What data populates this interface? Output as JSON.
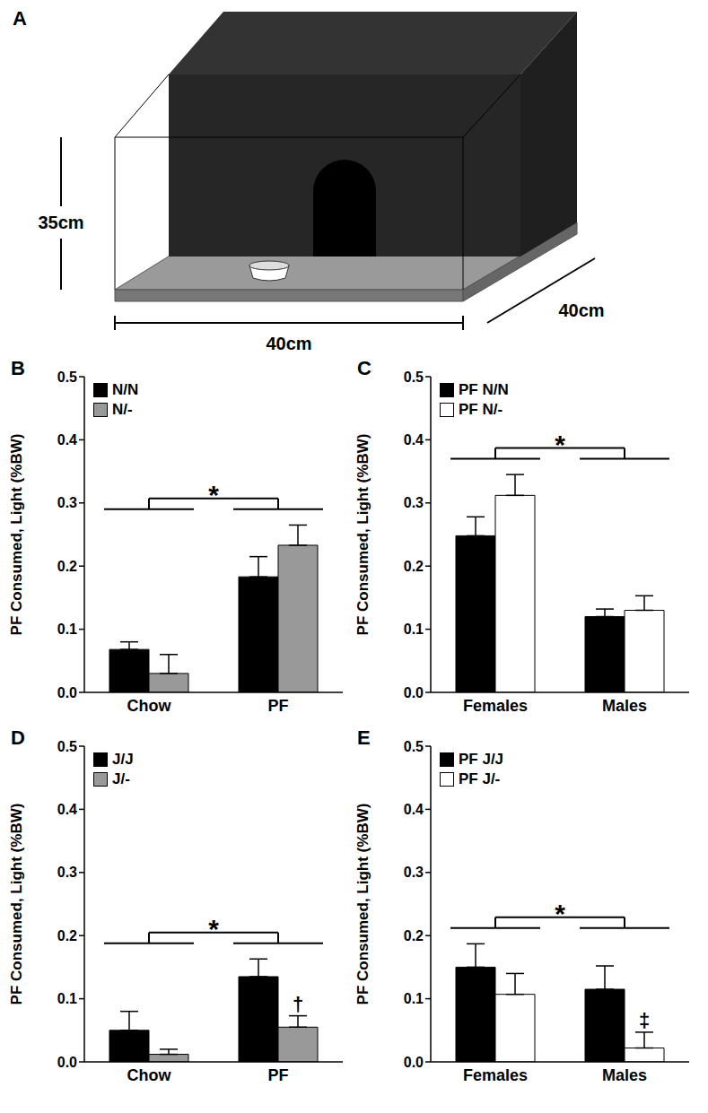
{
  "diagram": {
    "panel_label": "A",
    "dimensions": {
      "height": "35cm",
      "width": "40cm",
      "depth": "40cm"
    }
  },
  "chart_data": [
    {
      "panel_label": "B",
      "type": "bar",
      "y_label": "PF Consumed, Light (%BW)",
      "categories": [
        "Chow",
        "PF"
      ],
      "series": [
        {
          "name": "N/N",
          "color": "#000000",
          "values": [
            0.068,
            0.183
          ],
          "errors": [
            0.012,
            0.032
          ]
        },
        {
          "name": "N/-",
          "color": "#999999",
          "values": [
            0.03,
            0.233
          ],
          "errors": [
            0.03,
            0.032
          ]
        }
      ],
      "ylim": [
        0,
        0.5
      ],
      "yticks": [
        {
          "value": 0,
          "label": "0.0"
        },
        0.1,
        0.2,
        0.3,
        0.4,
        0.5
      ],
      "legend": "upper left",
      "annotations": [
        {
          "text": "*",
          "between": [
            "Chow",
            "PF"
          ]
        }
      ]
    },
    {
      "panel_label": "C",
      "type": "bar",
      "y_label": "PF Consumed, Light (%BW)",
      "categories": [
        "Females",
        "Males"
      ],
      "series": [
        {
          "name": "PF N/N",
          "color": "#000000",
          "values": [
            0.248,
            0.12
          ],
          "errors": [
            0.03,
            0.012
          ]
        },
        {
          "name": "PF N/-",
          "color": "#ffffff",
          "values": [
            0.312,
            0.13
          ],
          "errors": [
            0.033,
            0.023
          ]
        }
      ],
      "ylim": [
        0,
        0.5
      ],
      "yticks": [
        {
          "value": 0,
          "label": "0.0"
        },
        0.1,
        0.2,
        0.3,
        0.4,
        0.5
      ],
      "legend": "upper left",
      "annotations": [
        {
          "text": "*",
          "between": [
            "Females",
            "Males"
          ]
        }
      ]
    },
    {
      "panel_label": "D",
      "type": "bar",
      "y_label": "PF Consumed, Light (%BW)",
      "categories": [
        "Chow",
        "PF"
      ],
      "series": [
        {
          "name": "J/J",
          "color": "#000000",
          "values": [
            0.05,
            0.135
          ],
          "errors": [
            0.03,
            0.028
          ]
        },
        {
          "name": "J/-",
          "color": "#999999",
          "values": [
            0.012,
            0.055
          ],
          "errors": [
            0.008,
            0.018
          ]
        }
      ],
      "ylim": [
        0,
        0.5
      ],
      "yticks": [
        {
          "value": 0,
          "label": "0.0"
        },
        0.1,
        0.2,
        0.3,
        0.4,
        0.5
      ],
      "legend": "upper left",
      "annotations": [
        {
          "text": "*",
          "between": [
            "Chow",
            "PF"
          ]
        },
        {
          "text": "†",
          "category": "PF",
          "series": "J/-"
        }
      ]
    },
    {
      "panel_label": "E",
      "type": "bar",
      "y_label": "PF Consumed, Light (%BW)",
      "categories": [
        "Females",
        "Males"
      ],
      "series": [
        {
          "name": "PF J/J",
          "color": "#000000",
          "values": [
            0.15,
            0.115
          ],
          "errors": [
            0.037,
            0.037
          ]
        },
        {
          "name": "PF J/-",
          "color": "#ffffff",
          "values": [
            0.107,
            0.022
          ],
          "errors": [
            0.033,
            0.025
          ]
        }
      ],
      "ylim": [
        0,
        0.5
      ],
      "yticks": [
        {
          "value": 0,
          "label": "0.0"
        },
        0.1,
        0.2,
        0.3,
        0.4,
        0.5
      ],
      "legend": "upper left",
      "annotations": [
        {
          "text": "*",
          "between": [
            "Females",
            "Males"
          ]
        },
        {
          "text": "‡",
          "category": "Males",
          "series": "PF J/-"
        }
      ]
    }
  ]
}
